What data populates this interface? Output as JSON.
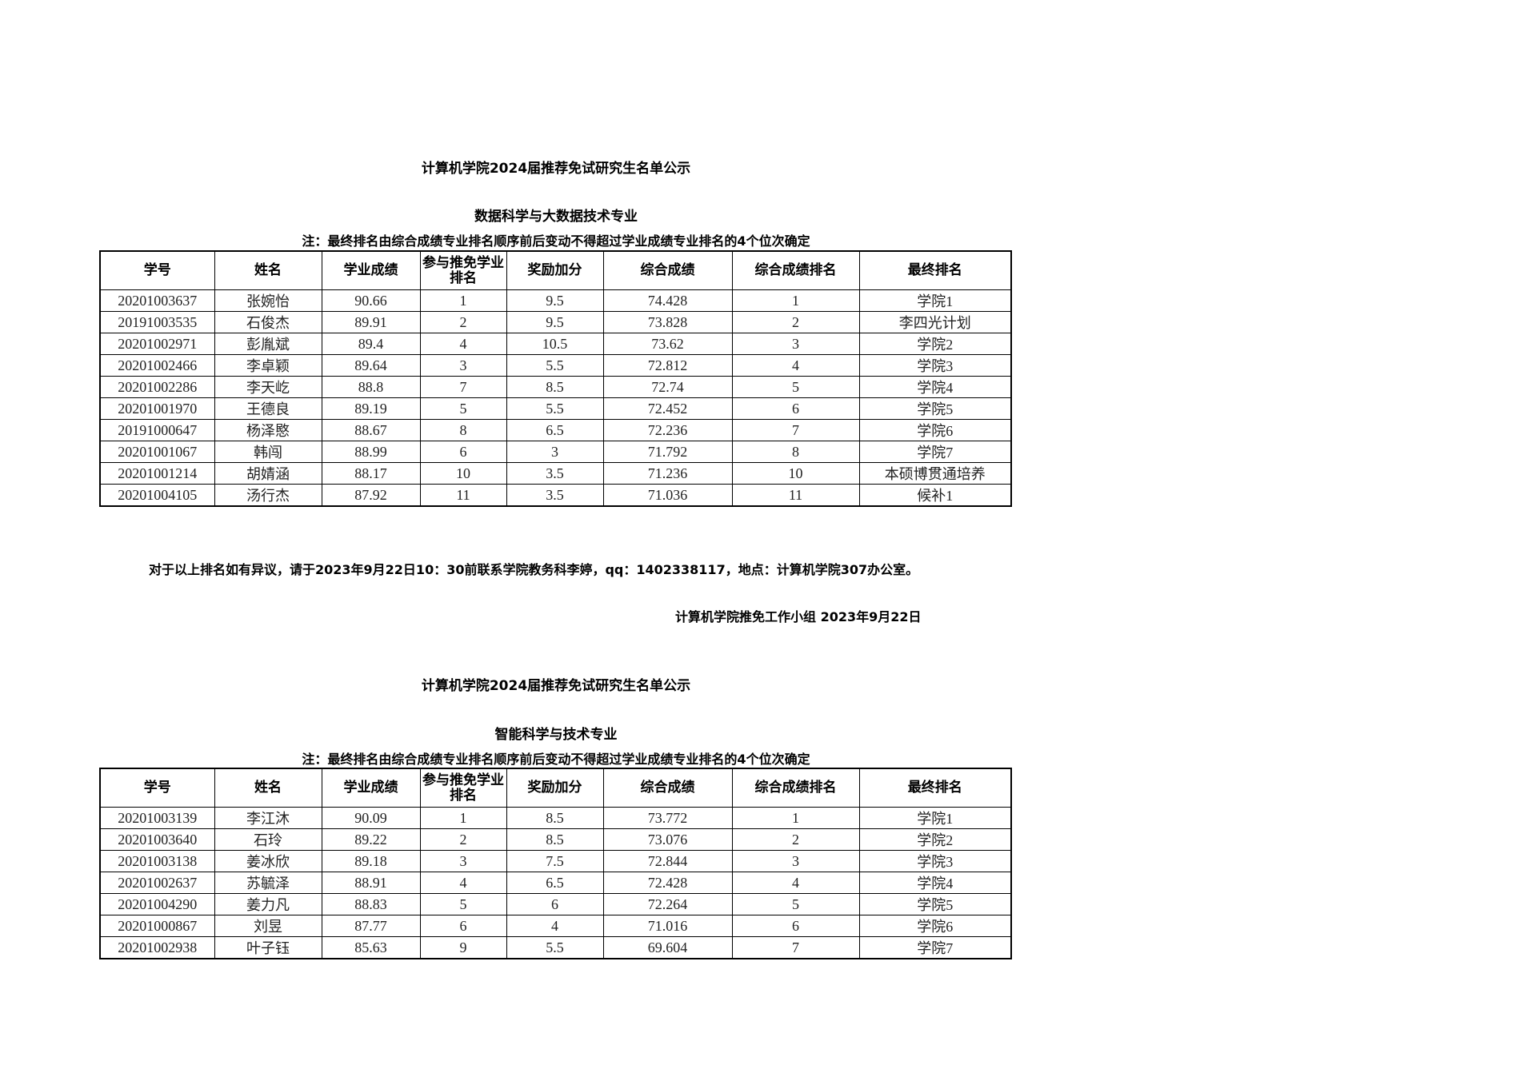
{
  "columns": [
    "学号",
    "姓名",
    "学业成绩",
    "参与推免学业排名",
    "奖励加分",
    "综合成绩",
    "综合成绩排名",
    "最终排名"
  ],
  "section1": {
    "title": "计算机学院2024届推荐免试研究生名单公示",
    "major": "数据科学与大数据技术专业",
    "note": "注：最终排名由综合成绩专业排名顺序前后变动不得超过学业成绩专业排名的4个位次确定",
    "rows": [
      [
        "20201003637",
        "张婉怡",
        "90.66",
        "1",
        "9.5",
        "74.428",
        "1",
        "学院1"
      ],
      [
        "20191003535",
        "石俊杰",
        "89.91",
        "2",
        "9.5",
        "73.828",
        "2",
        "李四光计划"
      ],
      [
        "20201002971",
        "彭胤斌",
        "89.4",
        "4",
        "10.5",
        "73.62",
        "3",
        "学院2"
      ],
      [
        "20201002466",
        "李卓颖",
        "89.64",
        "3",
        "5.5",
        "72.812",
        "4",
        "学院3"
      ],
      [
        "20201002286",
        "李天屹",
        "88.8",
        "7",
        "8.5",
        "72.74",
        "5",
        "学院4"
      ],
      [
        "20201001970",
        "王德良",
        "89.19",
        "5",
        "5.5",
        "72.452",
        "6",
        "学院5"
      ],
      [
        "20191000647",
        "杨泽愍",
        "88.67",
        "8",
        "6.5",
        "72.236",
        "7",
        "学院6"
      ],
      [
        "20201001067",
        "韩闯",
        "88.99",
        "6",
        "3",
        "71.792",
        "8",
        "学院7"
      ],
      [
        "20201001214",
        "胡婧涵",
        "88.17",
        "10",
        "3.5",
        "71.236",
        "10",
        "本硕博贯通培养"
      ],
      [
        "20201004105",
        "汤行杰",
        "87.92",
        "11",
        "3.5",
        "71.036",
        "11",
        "候补1"
      ]
    ]
  },
  "notice": "对于以上排名如有异议，请于2023年9月22日10：30前联系学院教务科李婷，qq：1402338117，地点：计算机学院307办公室。",
  "signature": "计算机学院推免工作小组 2023年9月22日",
  "section2": {
    "title": "计算机学院2024届推荐免试研究生名单公示",
    "major": "智能科学与技术专业",
    "note": "注：最终排名由综合成绩专业排名顺序前后变动不得超过学业成绩专业排名的4个位次确定",
    "rows": [
      [
        "20201003139",
        "李江沐",
        "90.09",
        "1",
        "8.5",
        "73.772",
        "1",
        "学院1"
      ],
      [
        "20201003640",
        "石玲",
        "89.22",
        "2",
        "8.5",
        "73.076",
        "2",
        "学院2"
      ],
      [
        "20201003138",
        "姜冰欣",
        "89.18",
        "3",
        "7.5",
        "72.844",
        "3",
        "学院3"
      ],
      [
        "20201002637",
        "苏毓泽",
        "88.91",
        "4",
        "6.5",
        "72.428",
        "4",
        "学院4"
      ],
      [
        "20201004290",
        "姜力凡",
        "88.83",
        "5",
        "6",
        "72.264",
        "5",
        "学院5"
      ],
      [
        "20201000867",
        "刘昱",
        "87.77",
        "6",
        "4",
        "71.016",
        "6",
        "学院6"
      ],
      [
        "20201002938",
        "叶子钰",
        "85.63",
        "9",
        "5.5",
        "69.604",
        "7",
        "学院7"
      ]
    ]
  }
}
